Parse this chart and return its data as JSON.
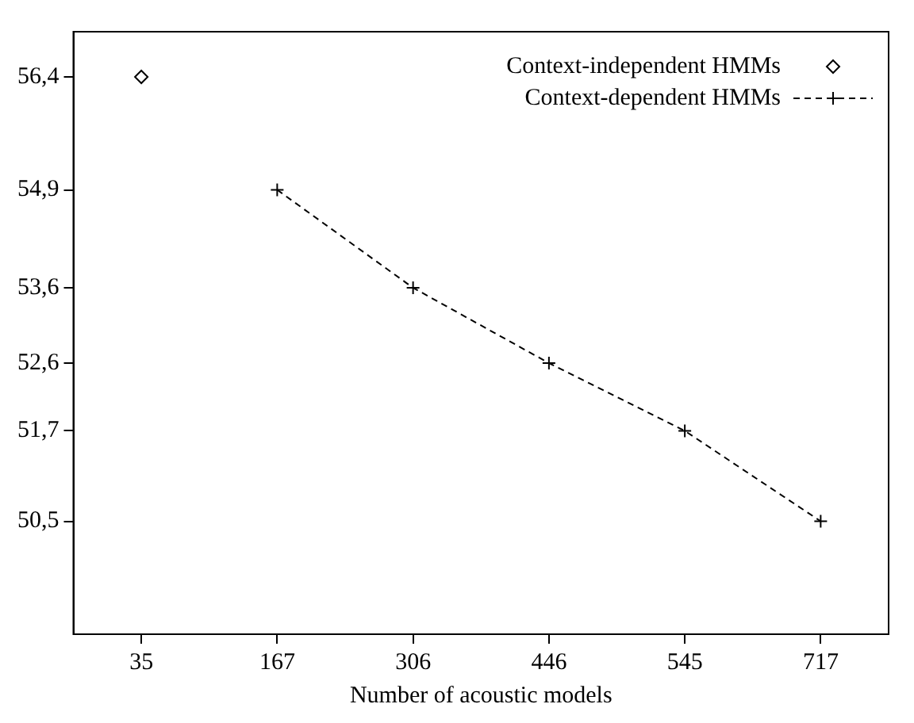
{
  "chart_data": {
    "type": "line",
    "xlabel": "Number of acoustic models",
    "categories": [
      "35",
      "167",
      "306",
      "446",
      "545",
      "717"
    ],
    "series": [
      {
        "name": "Context-independent HMMs",
        "color": "#000000",
        "marker": "diamond",
        "values": [
          56.4,
          null,
          null,
          null,
          null,
          null
        ]
      },
      {
        "name": "Context-dependent HMMs",
        "color": "#000000",
        "marker": "cross",
        "line_style": "dashed",
        "values": [
          null,
          54.9,
          53.6,
          52.6,
          51.7,
          50.5
        ]
      }
    ],
    "ylim": [
      49,
      57
    ],
    "yticks": [
      {
        "value": 50.5,
        "label": "50,5"
      },
      {
        "value": 51.7,
        "label": "51,7"
      },
      {
        "value": 52.6,
        "label": "52,6"
      },
      {
        "value": 53.6,
        "label": "53,6"
      },
      {
        "value": 54.9,
        "label": "54,9"
      },
      {
        "value": 56.4,
        "label": "56,4"
      }
    ],
    "grid": false,
    "legend": "top right"
  }
}
